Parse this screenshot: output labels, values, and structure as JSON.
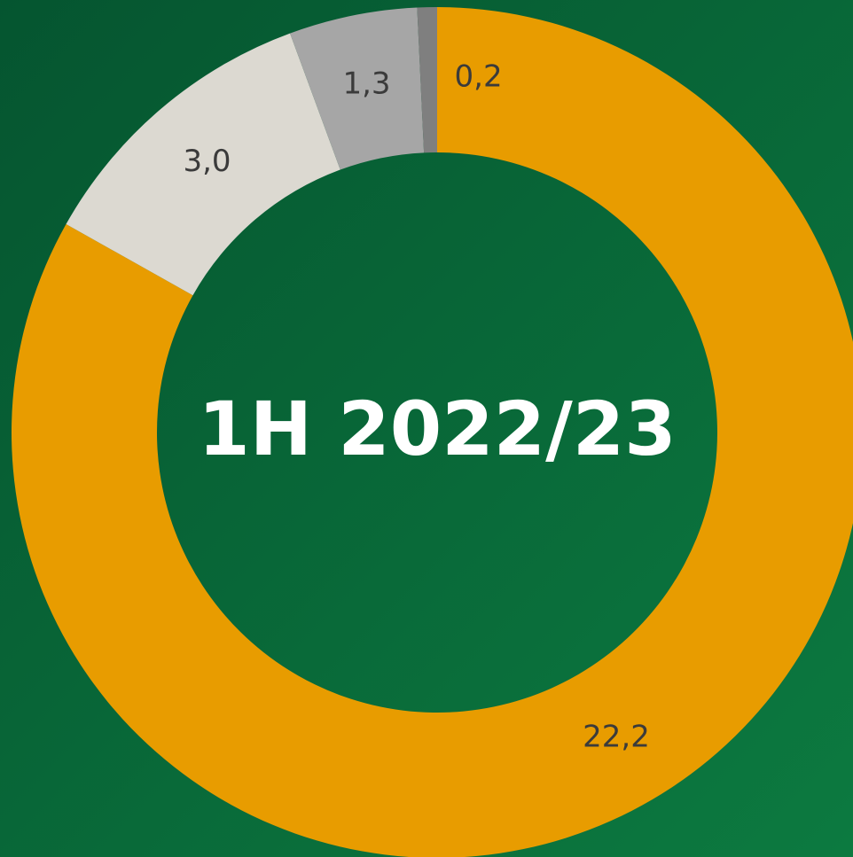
{
  "chart_data": {
    "type": "donut",
    "title": "1H 2022/23",
    "categories": [
      null,
      null,
      null,
      null
    ],
    "values": [
      22.2,
      3.0,
      1.3,
      0.2
    ],
    "value_labels": [
      "22,2",
      "3,0",
      "1,3",
      "0,2"
    ],
    "colors": [
      "#e89c00",
      "#dcd9d1",
      "#a6a6a6",
      "#7f7f7f"
    ]
  }
}
